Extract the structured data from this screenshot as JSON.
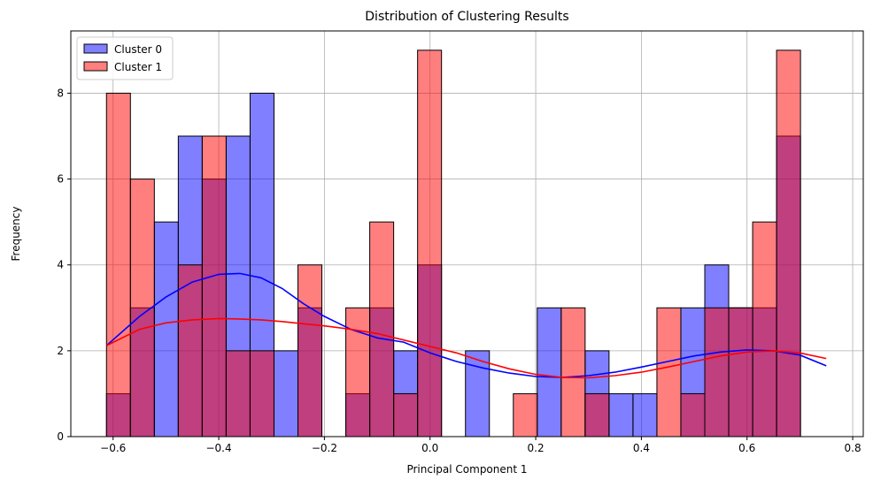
{
  "chart_data": {
    "type": "bar",
    "subtype": "overlapping histogram with KDE curves",
    "title": "Distribution of Clustering Results",
    "xlabel": "Principal Component 1",
    "ylabel": "Frequency",
    "xlim": [
      -0.68,
      0.82
    ],
    "ylim": [
      0,
      9.45
    ],
    "xticks": [
      -0.6,
      -0.4,
      -0.2,
      0.0,
      0.2,
      0.4,
      0.6,
      0.8
    ],
    "xtick_labels": [
      "−0.6",
      "−0.4",
      "−0.2",
      "0.0",
      "0.2",
      "0.4",
      "0.6",
      "0.8"
    ],
    "yticks": [
      0,
      2,
      4,
      6,
      8
    ],
    "ytick_labels": [
      "0",
      "2",
      "4",
      "6",
      "8"
    ],
    "grid": true,
    "legend_position": "top-left",
    "bin_edges": [
      -0.6125,
      -0.5672,
      -0.5219,
      -0.4766,
      -0.4313,
      -0.386,
      -0.3407,
      -0.2954,
      -0.2501,
      -0.2048,
      -0.1595,
      -0.1142,
      -0.0689,
      -0.0236,
      0.0217,
      0.067,
      0.1123,
      0.1576,
      0.2029,
      0.2482,
      0.2935,
      0.3388,
      0.3841,
      0.4294,
      0.4747,
      0.52,
      0.5653,
      0.6106,
      0.6559,
      0.7012,
      0.7465
    ],
    "series": [
      {
        "name": "Cluster 0",
        "color": "#0000ff",
        "fill_opacity": 0.5,
        "counts": [
          1,
          3,
          5,
          7,
          6,
          7,
          8,
          2,
          3,
          0,
          1,
          3,
          2,
          4,
          0,
          2,
          0,
          0,
          3,
          0,
          2,
          1,
          1,
          0,
          3,
          4,
          3,
          3,
          7,
          0
        ],
        "kde": {
          "x": [
            -0.6125,
            -0.55,
            -0.5,
            -0.45,
            -0.4,
            -0.36,
            -0.32,
            -0.28,
            -0.24,
            -0.2,
            -0.15,
            -0.1,
            -0.05,
            0.0,
            0.05,
            0.1,
            0.15,
            0.2,
            0.25,
            0.3,
            0.35,
            0.4,
            0.45,
            0.5,
            0.55,
            0.6,
            0.65,
            0.7,
            0.75
          ],
          "y": [
            2.12,
            2.8,
            3.25,
            3.6,
            3.78,
            3.8,
            3.7,
            3.45,
            3.1,
            2.8,
            2.5,
            2.3,
            2.2,
            1.95,
            1.75,
            1.6,
            1.48,
            1.4,
            1.38,
            1.42,
            1.5,
            1.62,
            1.75,
            1.88,
            1.97,
            2.02,
            2.0,
            1.9,
            1.65
          ]
        }
      },
      {
        "name": "Cluster 1",
        "color": "#ff0000",
        "fill_opacity": 0.5,
        "counts": [
          8,
          6,
          0,
          4,
          7,
          2,
          2,
          0,
          4,
          0,
          3,
          5,
          1,
          9,
          0,
          0,
          0,
          1,
          0,
          3,
          1,
          0,
          0,
          3,
          1,
          3,
          3,
          5,
          9,
          0
        ],
        "kde": {
          "x": [
            -0.6125,
            -0.55,
            -0.5,
            -0.45,
            -0.4,
            -0.36,
            -0.32,
            -0.28,
            -0.24,
            -0.2,
            -0.15,
            -0.1,
            -0.05,
            0.0,
            0.05,
            0.1,
            0.15,
            0.2,
            0.25,
            0.3,
            0.35,
            0.4,
            0.45,
            0.5,
            0.55,
            0.6,
            0.65,
            0.7,
            0.75
          ],
          "y": [
            2.12,
            2.5,
            2.65,
            2.72,
            2.75,
            2.74,
            2.72,
            2.68,
            2.63,
            2.58,
            2.5,
            2.4,
            2.25,
            2.1,
            1.95,
            1.75,
            1.58,
            1.45,
            1.38,
            1.37,
            1.42,
            1.5,
            1.62,
            1.75,
            1.88,
            1.97,
            2.0,
            1.95,
            1.82
          ]
        }
      }
    ]
  }
}
